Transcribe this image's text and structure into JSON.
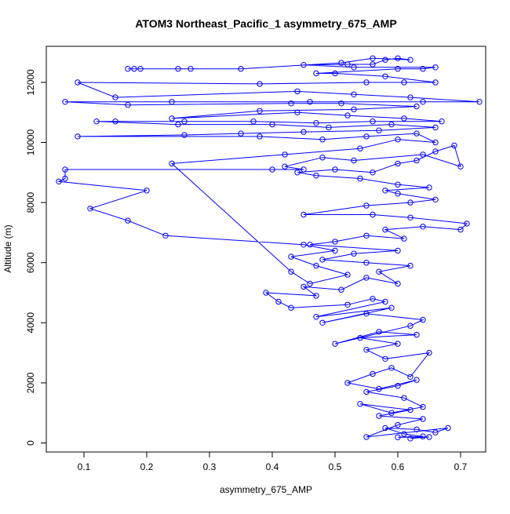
{
  "chart_data": {
    "type": "line",
    "title": "ATOM3 Northeast_Pacific_1 asymmetry_675_AMP",
    "xlabel": "asymmetry_675_AMP",
    "ylabel": "Altitude (m)",
    "xlim": [
      0.04,
      0.74
    ],
    "ylim": [
      -300,
      13200
    ],
    "xticks": [
      0.1,
      0.2,
      0.3,
      0.4,
      0.5,
      0.6,
      0.7
    ],
    "xtick_labels": [
      "0.1",
      "0.2",
      "0.3",
      "0.4",
      "0.5",
      "0.6",
      "0.7"
    ],
    "yticks": [
      0,
      2000,
      4000,
      6000,
      8000,
      10000,
      12000
    ],
    "ytick_labels": [
      "0",
      "2000",
      "4000",
      "6000",
      "8000",
      "10000",
      "12000"
    ],
    "grid": false,
    "legend": "none",
    "series": [
      {
        "color": "#0000ff",
        "marker": "open-circle",
        "points": [
          [
            0.62,
            150
          ],
          [
            0.65,
            200
          ],
          [
            0.6,
            190
          ],
          [
            0.64,
            220
          ],
          [
            0.61,
            300
          ],
          [
            0.58,
            500
          ],
          [
            0.63,
            450
          ],
          [
            0.66,
            350
          ],
          [
            0.68,
            500
          ],
          [
            0.55,
            200
          ],
          [
            0.6,
            600
          ],
          [
            0.64,
            800
          ],
          [
            0.57,
            900
          ],
          [
            0.62,
            1100
          ],
          [
            0.54,
            1300
          ],
          [
            0.59,
            1000
          ],
          [
            0.64,
            1200
          ],
          [
            0.61,
            1500
          ],
          [
            0.55,
            1700
          ],
          [
            0.6,
            1900
          ],
          [
            0.63,
            2100
          ],
          [
            0.57,
            1800
          ],
          [
            0.52,
            2000
          ],
          [
            0.56,
            2300
          ],
          [
            0.59,
            2500
          ],
          [
            0.62,
            2200
          ],
          [
            0.65,
            3000
          ],
          [
            0.58,
            2800
          ],
          [
            0.55,
            3100
          ],
          [
            0.6,
            3300
          ],
          [
            0.54,
            3500
          ],
          [
            0.63,
            3600
          ],
          [
            0.57,
            3700
          ],
          [
            0.5,
            3300
          ],
          [
            0.62,
            3900
          ],
          [
            0.64,
            4100
          ],
          [
            0.55,
            4300
          ],
          [
            0.48,
            4000
          ],
          [
            0.59,
            4500
          ],
          [
            0.47,
            4200
          ],
          [
            0.58,
            4700
          ],
          [
            0.56,
            4800
          ],
          [
            0.52,
            4600
          ],
          [
            0.43,
            4500
          ],
          [
            0.41,
            4700
          ],
          [
            0.39,
            5000
          ],
          [
            0.47,
            4900
          ],
          [
            0.45,
            5200
          ],
          [
            0.51,
            5100
          ],
          [
            0.55,
            5500
          ],
          [
            0.6,
            5300
          ],
          [
            0.57,
            5700
          ],
          [
            0.62,
            5900
          ],
          [
            0.55,
            6000
          ],
          [
            0.48,
            6100
          ],
          [
            0.53,
            6300
          ],
          [
            0.6,
            6400
          ],
          [
            0.46,
            6600
          ],
          [
            0.5,
            6700
          ],
          [
            0.55,
            6900
          ],
          [
            0.61,
            6800
          ],
          [
            0.58,
            7100
          ],
          [
            0.64,
            7200
          ],
          [
            0.7,
            7100
          ],
          [
            0.71,
            7300
          ],
          [
            0.62,
            7500
          ],
          [
            0.56,
            7600
          ],
          [
            0.45,
            7600
          ],
          [
            0.55,
            7900
          ],
          [
            0.62,
            8000
          ],
          [
            0.66,
            8100
          ],
          [
            0.6,
            8300
          ],
          [
            0.58,
            8400
          ],
          [
            0.65,
            8500
          ],
          [
            0.6,
            8600
          ],
          [
            0.54,
            8800
          ],
          [
            0.47,
            8900
          ],
          [
            0.44,
            9000
          ],
          [
            0.5,
            9100
          ],
          [
            0.56,
            9000
          ],
          [
            0.6,
            9300
          ],
          [
            0.63,
            9400
          ],
          [
            0.66,
            9700
          ],
          [
            0.69,
            9900
          ],
          [
            0.7,
            9200
          ],
          [
            0.64,
            9600
          ],
          [
            0.53,
            9400
          ],
          [
            0.48,
            9500
          ],
          [
            0.42,
            9200
          ],
          [
            0.45,
            9100
          ],
          [
            0.4,
            9100
          ],
          [
            0.07,
            9100
          ],
          [
            0.07,
            8800
          ],
          [
            0.06,
            8700
          ],
          [
            0.2,
            8400
          ],
          [
            0.11,
            7800
          ],
          [
            0.17,
            7400
          ],
          [
            0.23,
            6900
          ],
          [
            0.45,
            6600
          ],
          [
            0.5,
            6400
          ],
          [
            0.43,
            6200
          ],
          [
            0.47,
            5900
          ],
          [
            0.52,
            5600
          ],
          [
            0.46,
            5300
          ],
          [
            0.43,
            5700
          ],
          [
            0.24,
            9300
          ],
          [
            0.42,
            9600
          ],
          [
            0.54,
            9800
          ],
          [
            0.6,
            10100
          ],
          [
            0.66,
            10000
          ],
          [
            0.63,
            10300
          ],
          [
            0.55,
            10200
          ],
          [
            0.48,
            10100
          ],
          [
            0.38,
            10200
          ],
          [
            0.09,
            10200
          ],
          [
            0.26,
            10250
          ],
          [
            0.35,
            10300
          ],
          [
            0.45,
            10350
          ],
          [
            0.57,
            10400
          ],
          [
            0.66,
            10500
          ],
          [
            0.59,
            10600
          ],
          [
            0.49,
            10500
          ],
          [
            0.4,
            10600
          ],
          [
            0.25,
            10600
          ],
          [
            0.12,
            10700
          ],
          [
            0.15,
            10700
          ],
          [
            0.26,
            10700
          ],
          [
            0.37,
            10700
          ],
          [
            0.47,
            10650
          ],
          [
            0.56,
            10700
          ],
          [
            0.67,
            10700
          ],
          [
            0.61,
            10800
          ],
          [
            0.52,
            10900
          ],
          [
            0.44,
            11000
          ],
          [
            0.24,
            10800
          ],
          [
            0.38,
            11050
          ],
          [
            0.53,
            11100
          ],
          [
            0.63,
            11200
          ],
          [
            0.51,
            11300
          ],
          [
            0.43,
            11300
          ],
          [
            0.17,
            11250
          ],
          [
            0.07,
            11350
          ],
          [
            0.24,
            11350
          ],
          [
            0.46,
            11350
          ],
          [
            0.64,
            11350
          ],
          [
            0.73,
            11350
          ],
          [
            0.62,
            11500
          ],
          [
            0.53,
            11600
          ],
          [
            0.44,
            11700
          ],
          [
            0.15,
            11500
          ],
          [
            0.09,
            12000
          ],
          [
            0.38,
            11950
          ],
          [
            0.55,
            12000
          ],
          [
            0.61,
            12000
          ],
          [
            0.66,
            12000
          ],
          [
            0.58,
            12200
          ],
          [
            0.5,
            12300
          ],
          [
            0.47,
            12300
          ],
          [
            0.6,
            12450
          ],
          [
            0.64,
            12450
          ],
          [
            0.66,
            12500
          ],
          [
            0.53,
            12500
          ],
          [
            0.45,
            12580
          ],
          [
            0.52,
            12600
          ],
          [
            0.56,
            12600
          ],
          [
            0.58,
            12750
          ],
          [
            0.6,
            12800
          ],
          [
            0.62,
            12750
          ],
          [
            0.56,
            12800
          ],
          [
            0.51,
            12650
          ],
          [
            0.35,
            12450
          ],
          [
            0.25,
            12450
          ],
          [
            0.19,
            12450
          ],
          [
            0.18,
            12450
          ],
          [
            0.17,
            12450
          ],
          [
            0.27,
            12450
          ]
        ]
      }
    ]
  }
}
